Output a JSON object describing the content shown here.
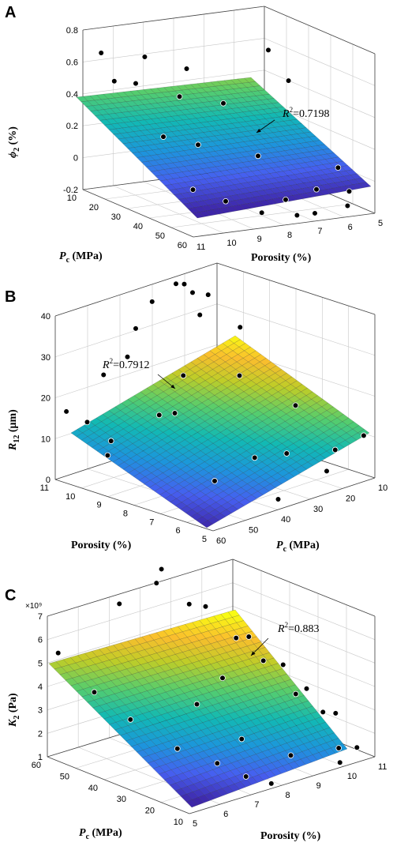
{
  "chart_data": [
    {
      "type": "surface",
      "panel_label": "A",
      "ylabel": {
        "main": "ϕ",
        "sub": "2",
        "unit": " (%)"
      },
      "pc_label": {
        "main": "P",
        "sub": "c",
        "unit": " (MPa)"
      },
      "por_label": "Porosity (%)",
      "zlim": [
        -0.2,
        0.8
      ],
      "z_ticks": [
        "0.8",
        "0.6",
        "0.4",
        "0.2",
        "0",
        "-0.2"
      ],
      "pc_ticks": [
        "10",
        "20",
        "30",
        "40",
        "50",
        "60"
      ],
      "por_ticks": [
        "11",
        "10",
        "9",
        "8",
        "7",
        "6",
        "5"
      ],
      "r2": {
        "r": "R",
        "sup": "2",
        "rest": "=0.7198"
      },
      "surface": {
        "z00": 0.38,
        "z10": 0.47,
        "z01": -0.23,
        "z11": -0.17
      },
      "points": [
        {
          "u": 0.04,
          "v": 0.1,
          "z": 0.68
        },
        {
          "u": 0.1,
          "v": 0.12,
          "z": 0.5
        },
        {
          "u": 0.2,
          "v": 0.15,
          "z": 0.48
        },
        {
          "u": 0.28,
          "v": 0.1,
          "z": 0.62
        },
        {
          "u": 0.45,
          "v": 0.2,
          "z": 0.55
        },
        {
          "u": 0.35,
          "v": 0.3,
          "z": 0.42
        },
        {
          "u": 0.2,
          "v": 0.4,
          "z": 0.22
        },
        {
          "u": 0.3,
          "v": 0.55,
          "z": 0.2
        },
        {
          "u": 0.5,
          "v": 0.45,
          "z": 0.4
        },
        {
          "u": 0.15,
          "v": 0.75,
          "z": 0.0
        },
        {
          "u": 0.3,
          "v": 0.8,
          "z": -0.08
        },
        {
          "u": 0.45,
          "v": 0.88,
          "z": -0.15
        },
        {
          "u": 0.6,
          "v": 0.85,
          "z": -0.1
        },
        {
          "u": 0.62,
          "v": 0.92,
          "z": -0.18
        },
        {
          "u": 0.7,
          "v": 0.95,
          "z": -0.17
        },
        {
          "u": 0.9,
          "v": 0.2,
          "z": 0.6
        },
        {
          "u": 0.92,
          "v": 0.35,
          "z": 0.45
        },
        {
          "u": 0.8,
          "v": 0.8,
          "z": -0.08
        },
        {
          "u": 0.95,
          "v": 0.85,
          "z": -0.1
        },
        {
          "u": 0.98,
          "v": 0.7,
          "z": 0.0
        },
        {
          "u": 0.88,
          "v": 0.95,
          "z": -0.15
        },
        {
          "u": 0.6,
          "v": 0.6,
          "z": 0.1
        }
      ]
    },
    {
      "type": "surface",
      "panel_label": "B",
      "ylabel": {
        "main": "R",
        "sub": "12",
        "unit": " (μm)"
      },
      "pc_label": {
        "main": "P",
        "sub": "c",
        "unit": " (MPa)"
      },
      "por_label": "Porosity (%)",
      "zlim": [
        0,
        40
      ],
      "z_ticks": [
        "40",
        "30",
        "20",
        "10",
        "0"
      ],
      "pc_ticks": [
        "60",
        "50",
        "40",
        "30",
        "20",
        "10"
      ],
      "por_ticks": [
        "11",
        "10",
        "9",
        "8",
        "7",
        "6",
        "5"
      ],
      "r2": {
        "r": "R",
        "sup": "2",
        "rest": "=0.7912"
      },
      "surface": {
        "z00": 15,
        "z10": 40,
        "z01": 0,
        "z11": 22
      },
      "points": [
        {
          "u": 0.02,
          "v": 0.05,
          "z": 17
        },
        {
          "u": 0.1,
          "v": 0.1,
          "z": 14
        },
        {
          "u": 0.15,
          "v": 0.2,
          "z": 10
        },
        {
          "u": 0.08,
          "v": 0.25,
          "z": 8
        },
        {
          "u": 0.25,
          "v": 0.05,
          "z": 23
        },
        {
          "u": 0.3,
          "v": 0.15,
          "z": 28
        },
        {
          "u": 0.35,
          "v": 0.3,
          "z": 15
        },
        {
          "u": 0.4,
          "v": 0.1,
          "z": 33
        },
        {
          "u": 0.45,
          "v": 0.35,
          "z": 24
        },
        {
          "u": 0.55,
          "v": 0.05,
          "z": 37
        },
        {
          "u": 0.6,
          "v": 0.15,
          "z": 42
        },
        {
          "u": 0.65,
          "v": 0.25,
          "z": 35
        },
        {
          "u": 0.7,
          "v": 0.1,
          "z": 40
        },
        {
          "u": 0.75,
          "v": 0.2,
          "z": 38
        },
        {
          "u": 0.8,
          "v": 0.05,
          "z": 36
        },
        {
          "u": 0.85,
          "v": 0.3,
          "z": 30
        },
        {
          "u": 0.7,
          "v": 0.45,
          "z": 22
        },
        {
          "u": 0.4,
          "v": 0.6,
          "z": 2
        },
        {
          "u": 0.55,
          "v": 0.7,
          "z": 7
        },
        {
          "u": 0.65,
          "v": 0.8,
          "z": 8
        },
        {
          "u": 0.5,
          "v": 0.9,
          "z": 0
        },
        {
          "u": 0.9,
          "v": 0.6,
          "z": 14
        },
        {
          "u": 0.95,
          "v": 0.8,
          "z": 5
        },
        {
          "u": 0.8,
          "v": 0.9,
          "z": 3
        },
        {
          "u": 0.98,
          "v": 0.95,
          "z": 10
        },
        {
          "u": 0.3,
          "v": 0.45,
          "z": 18
        }
      ]
    },
    {
      "type": "surface",
      "panel_label": "C",
      "exponent": "×10⁹",
      "ylabel": {
        "main": "K",
        "sub": "2",
        "unit": " (Pa)"
      },
      "pc_label": {
        "main": "P",
        "sub": "c",
        "unit": " (MPa)"
      },
      "por_label": "Porosity (%)",
      "zlim": [
        1,
        7
      ],
      "z_ticks": [
        "7",
        "6",
        "5",
        "4",
        "3",
        "2",
        "1"
      ],
      "pc_ticks": [
        "60",
        "50",
        "40",
        "30",
        "20",
        "10"
      ],
      "por_ticks": [
        "5",
        "6",
        "7",
        "8",
        "9",
        "10",
        "11"
      ],
      "r2": {
        "r": "R",
        "sup": "2",
        "rest": "=0.883"
      },
      "surface": {
        "z00": 5.4,
        "z10": 7.2,
        "z01": 0.8,
        "z11": 2.8
      },
      "points": [
        {
          "u": 0.02,
          "v": 0.05,
          "z": 5.5
        },
        {
          "u": 0.1,
          "v": 0.2,
          "z": 4.0
        },
        {
          "u": 0.18,
          "v": 0.35,
          "z": 3.0
        },
        {
          "u": 0.28,
          "v": 0.55,
          "z": 2.0
        },
        {
          "u": 0.38,
          "v": 0.7,
          "z": 1.5
        },
        {
          "u": 0.42,
          "v": 0.85,
          "z": 1.2
        },
        {
          "u": 0.48,
          "v": 0.95,
          "z": 1.0
        },
        {
          "u": 0.35,
          "v": 0.05,
          "z": 6.8
        },
        {
          "u": 0.55,
          "v": 0.05,
          "z": 7.2
        },
        {
          "u": 0.6,
          "v": 0.02,
          "z": 7.6
        },
        {
          "u": 0.65,
          "v": 0.15,
          "z": 6.3
        },
        {
          "u": 0.7,
          "v": 0.2,
          "z": 6.2
        },
        {
          "u": 0.75,
          "v": 0.35,
          "z": 5.1
        },
        {
          "u": 0.78,
          "v": 0.4,
          "z": 5.2
        },
        {
          "u": 0.82,
          "v": 0.45,
          "z": 4.2
        },
        {
          "u": 0.85,
          "v": 0.55,
          "z": 4.2
        },
        {
          "u": 0.88,
          "v": 0.6,
          "z": 3.0
        },
        {
          "u": 0.9,
          "v": 0.65,
          "z": 3.3
        },
        {
          "u": 0.95,
          "v": 0.7,
          "z": 2.3
        },
        {
          "u": 0.98,
          "v": 0.75,
          "z": 2.3
        },
        {
          "u": 0.92,
          "v": 0.85,
          "z": 1.2
        },
        {
          "u": 0.98,
          "v": 0.9,
          "z": 1.2
        },
        {
          "u": 0.6,
          "v": 0.45,
          "z": 4.0
        },
        {
          "u": 0.55,
          "v": 0.65,
          "z": 2.0
        },
        {
          "u": 0.7,
          "v": 0.8,
          "z": 1.3
        },
        {
          "u": 0.5,
          "v": 0.4,
          "z": 3.0
        },
        {
          "u": 0.85,
          "v": 0.95,
          "z": 1.0
        }
      ]
    }
  ]
}
